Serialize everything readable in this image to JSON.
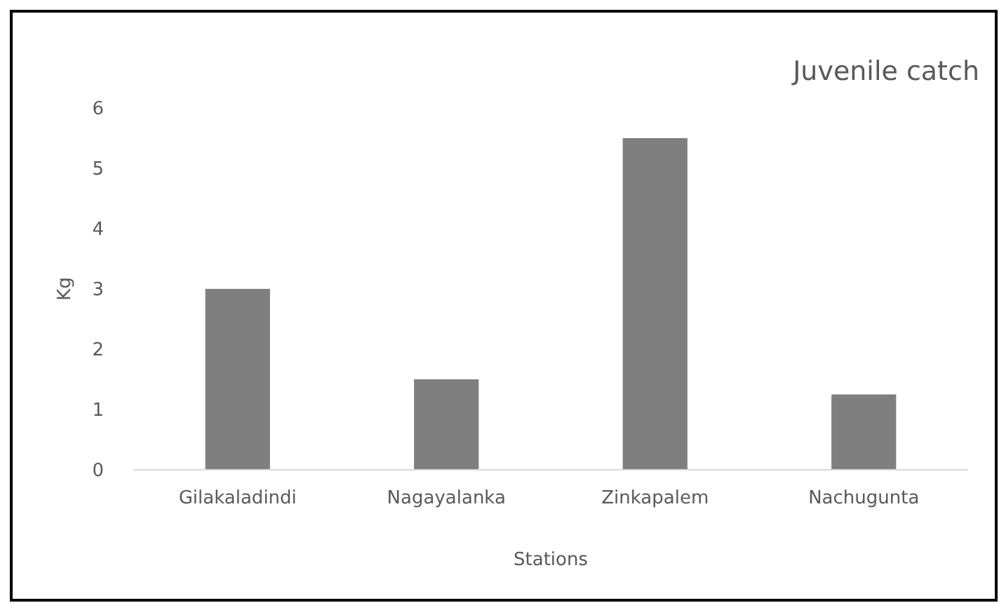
{
  "chart_data": {
    "type": "bar",
    "title": "Juvenile catch",
    "xlabel": "Stations",
    "ylabel": "Kg",
    "categories": [
      "Gilakaladindi",
      "Nagayalanka",
      "Zinkapalem",
      "Nachugunta"
    ],
    "values": [
      3,
      1.5,
      5.5,
      1.25
    ],
    "color": "#7f7f7f",
    "ylim": [
      0,
      6
    ],
    "yticks": [
      0,
      1,
      2,
      3,
      4,
      5,
      6
    ],
    "grid": false
  }
}
